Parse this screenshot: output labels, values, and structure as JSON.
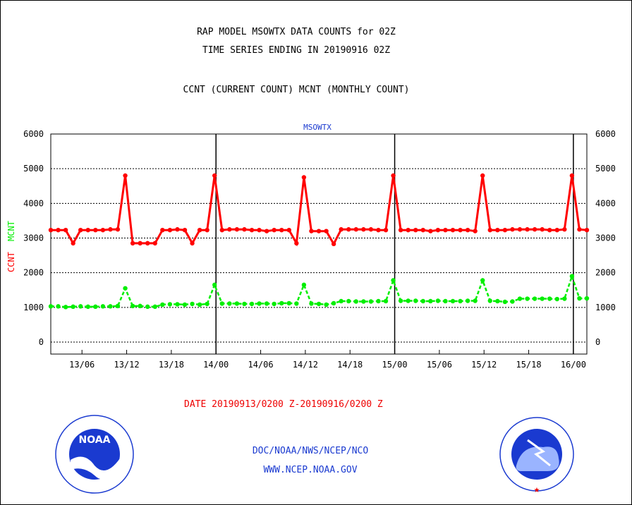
{
  "header": {
    "line1": "RAP MODEL MSOWTX DATA COUNTS for 02Z",
    "line2": "TIME SERIES ENDING IN 20190916 02Z",
    "line3": "CCNT (CURRENT COUNT) MCNT (MONTHLY COUNT)"
  },
  "footer": {
    "date_range": "DATE 20190913/0200 Z-20190916/0200 Z",
    "agency": "DOC/NOAA/NWS/NCEP/NCO",
    "url": "WWW.NCEP.NOAA.GOV"
  },
  "logos": {
    "left": "NOAA",
    "left_ring": "NATIONAL OCEANIC AND ATMOSPHERIC ADMINISTRATION · U.S. DEPARTMENT OF COMMERCE",
    "right_ring": "NATIONAL WEATHER SERVICE"
  },
  "chart_data": {
    "type": "line",
    "title": "MSOWTX",
    "ylabel_left": [
      "CCNT",
      "MCNT"
    ],
    "ylim": [
      -300,
      6000
    ],
    "yticks": [
      "6000",
      "5000",
      "4000",
      "3000",
      "2000",
      "1000",
      "0"
    ],
    "ytick_values": [
      6000,
      5000,
      4000,
      3000,
      2000,
      1000,
      0
    ],
    "x_tick_labels": [
      "13/06",
      "13/12",
      "13/18",
      "14/00",
      "14/06",
      "14/12",
      "14/18",
      "15/00",
      "15/06",
      "15/12",
      "15/18",
      "16/00"
    ],
    "x_tick_hours": [
      4,
      10,
      16,
      22,
      28,
      34,
      40,
      46,
      52,
      58,
      64,
      70
    ],
    "x_day_boundary_hours": [
      22,
      46,
      70
    ],
    "x_range_hours": [
      0,
      72
    ],
    "grid": "horizontal",
    "series": [
      {
        "name": "CCNT",
        "color": "#ff0000",
        "values": [
          3230,
          3230,
          3230,
          2850,
          3230,
          3230,
          3230,
          3230,
          3250,
          3250,
          4800,
          2850,
          2850,
          2850,
          2850,
          3230,
          3230,
          3250,
          3230,
          2850,
          3230,
          3230,
          4800,
          3230,
          3250,
          3250,
          3250,
          3230,
          3230,
          3200,
          3230,
          3230,
          3230,
          2850,
          4750,
          3200,
          3200,
          3200,
          2830,
          3250,
          3250,
          3250,
          3250,
          3250,
          3230,
          3230,
          4800,
          3230,
          3230,
          3230,
          3230,
          3200,
          3230,
          3230,
          3230,
          3230,
          3230,
          3200,
          4800,
          3230,
          3230,
          3230,
          3250,
          3250,
          3250,
          3250,
          3250,
          3230,
          3230,
          3250,
          4800,
          3250,
          3230
        ]
      },
      {
        "name": "MCNT",
        "color": "#00ee00",
        "values": [
          1030,
          1030,
          1010,
          1020,
          1030,
          1020,
          1020,
          1030,
          1030,
          1040,
          1550,
          1040,
          1040,
          1020,
          1020,
          1080,
          1090,
          1090,
          1080,
          1100,
          1080,
          1100,
          1650,
          1110,
          1110,
          1110,
          1100,
          1100,
          1110,
          1110,
          1100,
          1120,
          1120,
          1110,
          1650,
          1110,
          1100,
          1080,
          1120,
          1180,
          1180,
          1170,
          1170,
          1170,
          1180,
          1180,
          1780,
          1190,
          1190,
          1190,
          1180,
          1180,
          1190,
          1180,
          1180,
          1180,
          1190,
          1190,
          1780,
          1190,
          1180,
          1160,
          1170,
          1250,
          1250,
          1250,
          1250,
          1250,
          1240,
          1250,
          1900,
          1260,
          1260
        ]
      }
    ]
  }
}
